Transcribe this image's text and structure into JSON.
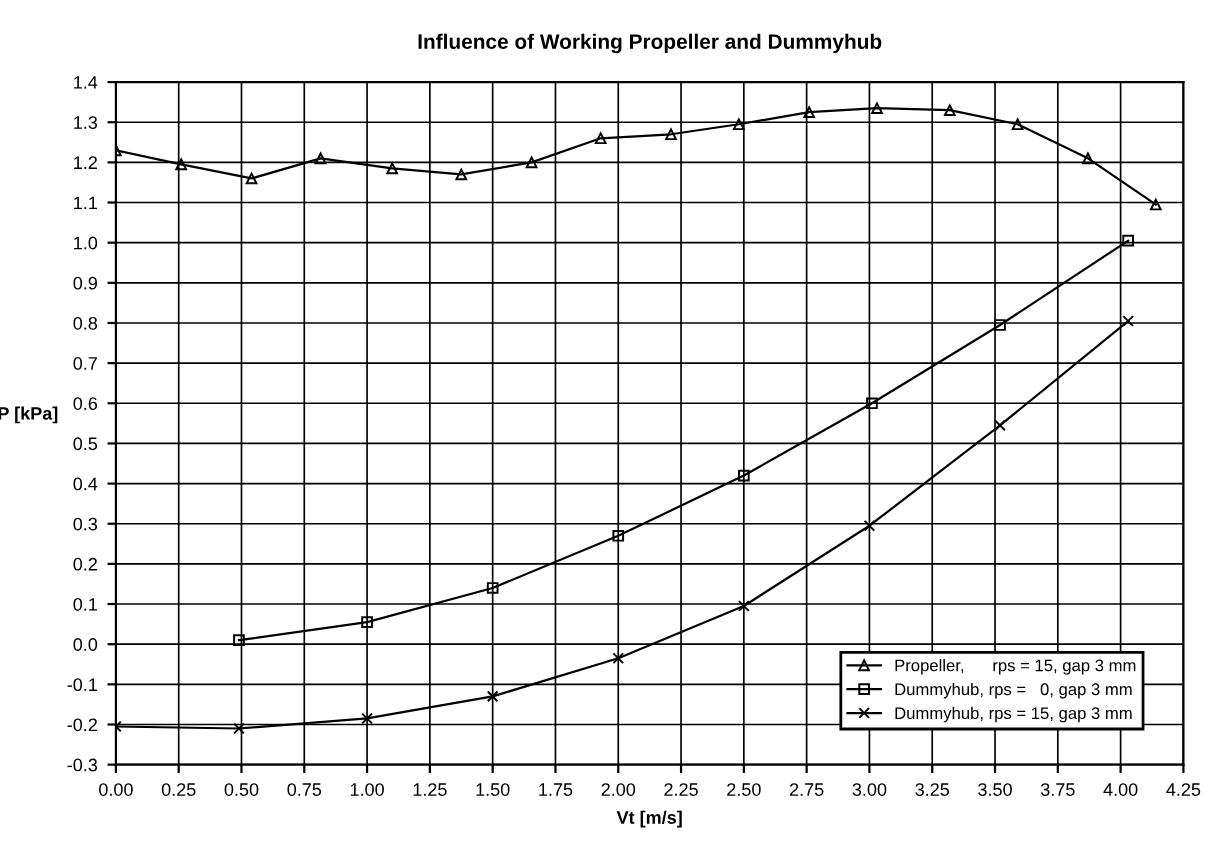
{
  "chart_data": {
    "type": "line",
    "title": "Influence of Working Propeller and Dummyhub",
    "xlabel": "Vt [m/s]",
    "ylabel": "P [kPa]",
    "xlim": [
      0,
      4.25
    ],
    "xticks": [
      {
        "value": 0,
        "label": "0.00"
      },
      {
        "value": 0.25,
        "label": "0.25"
      },
      {
        "value": 0.5,
        "label": "0.50"
      },
      {
        "value": 0.75,
        "label": "0.75"
      },
      {
        "value": 1,
        "label": "1.00"
      },
      {
        "value": 1.25,
        "label": "1.25"
      },
      {
        "value": 1.5,
        "label": "1.50"
      },
      {
        "value": 1.75,
        "label": "1.75"
      },
      {
        "value": 2,
        "label": "2.00"
      },
      {
        "value": 2.25,
        "label": "2.25"
      },
      {
        "value": 2.5,
        "label": "2.50"
      },
      {
        "value": 2.75,
        "label": "2.75"
      },
      {
        "value": 3,
        "label": "3.00"
      },
      {
        "value": 3.25,
        "label": "3.25"
      },
      {
        "value": 3.5,
        "label": "3.50"
      },
      {
        "value": 3.75,
        "label": "3.75"
      },
      {
        "value": 4,
        "label": "4.00"
      },
      {
        "value": 4.25,
        "label": "4.25"
      }
    ],
    "ylim": [
      -0.3,
      1.4
    ],
    "yticks": [
      -0.3,
      -0.2,
      -0.1,
      {
        "value": 0,
        "label": "0.0"
      },
      0.1,
      0.2,
      0.3,
      0.4,
      0.5,
      0.6,
      0.7,
      0.8,
      0.9,
      {
        "value": 1,
        "label": "1.0"
      },
      1.1,
      1.2,
      1.3,
      1.4
    ],
    "grid": true,
    "legend": "bottom right",
    "line_style": "solid",
    "series": [
      {
        "name": "Propeller,      rps = 15, gap 3 mm",
        "color": "#000000",
        "marker": "triangle",
        "x": [
          0,
          0.26,
          0.54,
          0.815,
          1.1,
          1.375,
          1.655,
          1.93,
          2.21,
          2.48,
          2.76,
          3.03,
          3.32,
          3.59,
          3.87,
          4.14
        ],
        "values": [
          1.23,
          1.195,
          1.16,
          1.21,
          1.185,
          1.17,
          1.2,
          1.26,
          1.27,
          1.295,
          1.325,
          1.335,
          1.33,
          1.295,
          1.21,
          1.095
        ]
      },
      {
        "name": "Dummyhub, rps =   0, gap 3 mm",
        "color": "#000000",
        "marker": "square",
        "x": [
          0.49,
          1.0,
          1.5,
          2.0,
          2.5,
          3.01,
          3.52,
          4.03
        ],
        "values": [
          0.01,
          0.055,
          0.14,
          0.27,
          0.42,
          0.6,
          0.795,
          1.005
        ]
      },
      {
        "name": "Dummyhub, rps = 15, gap 3 mm",
        "color": "#000000",
        "marker": "cross",
        "x": [
          0,
          0.49,
          1.0,
          1.5,
          2.0,
          2.5,
          3.0,
          3.52,
          4.03
        ],
        "values": [
          -0.205,
          -0.21,
          -0.185,
          -0.13,
          -0.035,
          0.095,
          0.295,
          0.545,
          0.805
        ]
      }
    ]
  }
}
